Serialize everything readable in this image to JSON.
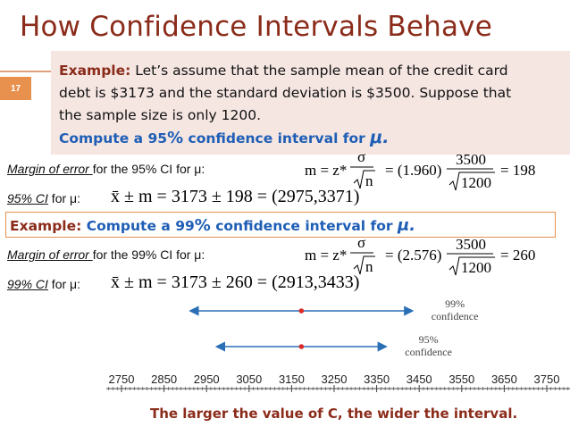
{
  "title": "How Confidence Intervals Behave",
  "slide_number": "17",
  "example1": {
    "label": "Example:",
    "line1": " Let’s assume that the sample mean of the credit card",
    "line2": "debt is $3173 and the standard deviation is $3500. Suppose that",
    "line3": "the sample size is only 1200.",
    "task_prefix": "Compute a 95",
    "task_pct": "%",
    "task_suffix": " confidence interval for ",
    "task_mu": "μ."
  },
  "row1": {
    "label_underlined": "Margin of error ",
    "label_rest": "for the 95% CI for μ:",
    "lhs": "m = z*",
    "sigma": "σ",
    "sqrt_n": "n",
    "eq1": "= (1.960)",
    "num": "3500",
    "den": "1200",
    "result": "= 198"
  },
  "row2": {
    "label_italic": "95% CI",
    "label_rest": " for μ:",
    "formula": "x̄ ± m = 3173 ± 198 = (2975,3371)"
  },
  "example2": {
    "label": "Example:",
    "text": " Compute a 99",
    "pct": "%",
    "text2": " confidence interval for ",
    "mu": "μ."
  },
  "row3": {
    "label_underlined": "Margin of error ",
    "label_rest": "for the 99% CI for μ:",
    "lhs": "m = z*",
    "sigma": "σ",
    "sqrt_n": "n",
    "eq1": "= (2.576)",
    "num": "3500",
    "den": "1200",
    "result": "= 260"
  },
  "row4": {
    "label_italic": "99% CI",
    "label_rest": " for μ:",
    "formula": "x̄ ± m = 3173 ± 260 = (2913,3433)"
  },
  "chart_data": {
    "type": "interval",
    "x_ticks": [
      2750,
      2850,
      2950,
      3050,
      3150,
      3250,
      3350,
      3450,
      3550,
      3650,
      3750
    ],
    "xlim": [
      2700,
      3800
    ],
    "intervals": [
      {
        "name": "99% confidence",
        "lower": 2913,
        "upper": 3433,
        "center": 3173
      },
      {
        "name": "95% confidence",
        "lower": 2975,
        "upper": 3371,
        "center": 3173
      }
    ],
    "colors": {
      "line": "#2a6fb5",
      "center": "#d92a2a",
      "axis": "#444444",
      "label": "#444444"
    }
  },
  "caption": "The larger the value of C, the wider the interval."
}
